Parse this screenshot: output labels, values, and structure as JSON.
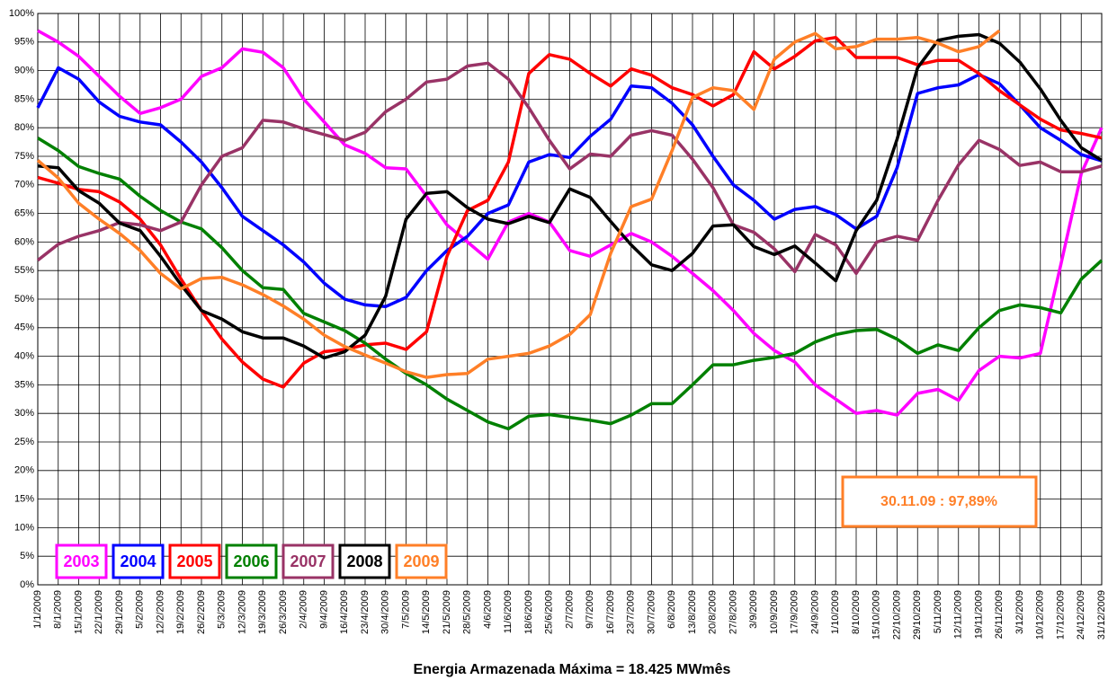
{
  "chart_data": {
    "type": "line",
    "x_label": "Energia Armazenada Máxima = 18.425 MWmês",
    "annotation": "30.11.09 : 97,89%",
    "annotation_color": "#ff7f27",
    "grid": true,
    "legend": "lower left",
    "ylim": [
      0,
      100
    ],
    "yticks": [
      {
        "value": 0,
        "label": "0%"
      },
      {
        "value": 5,
        "label": "5%"
      },
      {
        "value": 10,
        "label": "10%"
      },
      {
        "value": 15,
        "label": "15%"
      },
      {
        "value": 20,
        "label": "20%"
      },
      {
        "value": 25,
        "label": "25%"
      },
      {
        "value": 30,
        "label": "30%"
      },
      {
        "value": 35,
        "label": "35%"
      },
      {
        "value": 40,
        "label": "40%"
      },
      {
        "value": 45,
        "label": "45%"
      },
      {
        "value": 50,
        "label": "50%"
      },
      {
        "value": 55,
        "label": "55%"
      },
      {
        "value": 60,
        "label": "60%"
      },
      {
        "value": 65,
        "label": "65%"
      },
      {
        "value": 70,
        "label": "70%"
      },
      {
        "value": 75,
        "label": "75%"
      },
      {
        "value": 80,
        "label": "80%"
      },
      {
        "value": 85,
        "label": "85%"
      },
      {
        "value": 90,
        "label": "90%"
      },
      {
        "value": 95,
        "label": "95%"
      },
      {
        "value": 100,
        "label": "100%"
      }
    ],
    "categories": [
      "1/1/2009",
      "8/1/2009",
      "15/1/2009",
      "22/1/2009",
      "29/1/2009",
      "5/2/2009",
      "12/2/2009",
      "19/2/2009",
      "26/2/2009",
      "5/3/2009",
      "12/3/2009",
      "19/3/2009",
      "26/3/2009",
      "2/4/2009",
      "9/4/2009",
      "16/4/2009",
      "23/4/2009",
      "30/4/2009",
      "7/5/2009",
      "14/5/2009",
      "21/5/2009",
      "28/5/2009",
      "4/6/2009",
      "11/6/2009",
      "18/6/2009",
      "25/6/2009",
      "2/7/2009",
      "9/7/2009",
      "16/7/2009",
      "23/7/2009",
      "30/7/2009",
      "6/8/2009",
      "13/8/2009",
      "20/8/2009",
      "27/8/2009",
      "3/9/2009",
      "10/9/2009",
      "17/9/2009",
      "24/9/2009",
      "1/10/2009",
      "8/10/2009",
      "15/10/2009",
      "22/10/2009",
      "29/10/2009",
      "5/11/2009",
      "12/11/2009",
      "19/11/2009",
      "26/11/2009",
      "3/12/2009",
      "10/12/2009",
      "17/12/2009",
      "24/12/2009",
      "31/12/2009"
    ],
    "series": [
      {
        "name": "2003",
        "color": "#ff00ff",
        "values": [
          97,
          95,
          92.5,
          89,
          85.5,
          82.5,
          83.5,
          85,
          89,
          90.5,
          93.8,
          93.2,
          90.5,
          85,
          81,
          77,
          75.5,
          73,
          72.8,
          68,
          63,
          60,
          57,
          63.5,
          65,
          63.5,
          58.5,
          57.5,
          59.5,
          61.5,
          60,
          57.5,
          54.5,
          51.5,
          48,
          44,
          41,
          39,
          35,
          32.5,
          30,
          30.5,
          29.7,
          33.5,
          34.2,
          32.3,
          37.5,
          40,
          39.7,
          40.5,
          56,
          72,
          80
        ]
      },
      {
        "name": "2004",
        "color": "#0000ff",
        "values": [
          83.5,
          90.5,
          88.5,
          84.5,
          82,
          81,
          80.5,
          77.5,
          74,
          69.5,
          64.5,
          62,
          59.5,
          56.5,
          52.8,
          50,
          49,
          48.7,
          50.3,
          55,
          58.5,
          61,
          65,
          66.5,
          74,
          75.3,
          74.8,
          78.5,
          81.5,
          87.3,
          87,
          84.3,
          80.5,
          75,
          70,
          67.3,
          64,
          65.7,
          66.2,
          64.8,
          62.3,
          64.5,
          73,
          86,
          87,
          87.5,
          89.3,
          87.7,
          84,
          80,
          77.8,
          75.3,
          74.2
        ]
      },
      {
        "name": "2005",
        "color": "#ff0000",
        "values": [
          71.3,
          70.3,
          69.2,
          68.8,
          67,
          64,
          59.5,
          53.5,
          48,
          43,
          39,
          36,
          34.6,
          38.8,
          40.8,
          41.2,
          42,
          42.3,
          41.2,
          44.3,
          57.5,
          65.5,
          67.3,
          74,
          89.5,
          92.8,
          92,
          89.5,
          87.3,
          90.3,
          89.2,
          87,
          85.8,
          83.8,
          85.8,
          93.3,
          90.3,
          92.5,
          95.2,
          95.8,
          92.3,
          92.3,
          92.3,
          91,
          91.8,
          91.8,
          89.5,
          86.5,
          84,
          81.5,
          79.6,
          79,
          78.2
        ]
      },
      {
        "name": "2006",
        "color": "#008000",
        "values": [
          78.2,
          76,
          73.2,
          72,
          71,
          68,
          65.5,
          63.5,
          62.3,
          59,
          55,
          52,
          51.7,
          47.5,
          46,
          44.5,
          42.3,
          39.5,
          37,
          35,
          32.5,
          30.5,
          28.5,
          27.3,
          29.5,
          29.8,
          29.3,
          28.8,
          28.2,
          29.7,
          31.7,
          31.7,
          35,
          38.5,
          38.5,
          39.3,
          39.8,
          40.5,
          42.5,
          43.8,
          44.5,
          44.7,
          43,
          40.5,
          42,
          41,
          45,
          48,
          49,
          48.5,
          47.6,
          53.5,
          56.8
        ]
      },
      {
        "name": "2007",
        "color": "#993366",
        "values": [
          56.8,
          59.6,
          61,
          62,
          63.4,
          63,
          62,
          63.5,
          70,
          75,
          76.5,
          81.3,
          81,
          79.8,
          78.8,
          77.8,
          79.2,
          82.8,
          85,
          88,
          88.5,
          90.8,
          91.3,
          88.5,
          83.5,
          77.8,
          72.8,
          75.4,
          75,
          78.7,
          79.5,
          78.7,
          74.5,
          69.5,
          63,
          61.7,
          58.8,
          54.8,
          61.3,
          59.5,
          54.5,
          60,
          61,
          60.3,
          67.3,
          73.5,
          77.8,
          76.2,
          73.4,
          74,
          72.3,
          72.3,
          73.3
        ]
      },
      {
        "name": "2008",
        "color": "#000000",
        "values": [
          73.3,
          73,
          69,
          66.8,
          63.3,
          62,
          57.5,
          52.5,
          48,
          46.5,
          44.3,
          43.2,
          43.2,
          41.8,
          39.7,
          40.8,
          43.7,
          50.5,
          64,
          68.5,
          68.8,
          66,
          64,
          63.2,
          64.5,
          63.4,
          69.3,
          67.8,
          63.6,
          59.5,
          56,
          55,
          58,
          62.8,
          63,
          59.2,
          57.8,
          59.3,
          56.3,
          53.2,
          62,
          67.3,
          78,
          90.5,
          95.3,
          96,
          96.3,
          94.8,
          91.5,
          86.8,
          81.3,
          76.5,
          74.3
        ]
      },
      {
        "name": "2009",
        "color": "#ff7f27",
        "values": [
          74.3,
          71.2,
          66.8,
          64,
          61.5,
          58.5,
          54.5,
          51.8,
          53.6,
          53.8,
          52.5,
          50.8,
          48.8,
          46.5,
          43.7,
          41.7,
          40.2,
          38.8,
          37.3,
          36.3,
          36.8,
          37,
          39.5,
          40,
          40.5,
          41.8,
          43.8,
          47.3,
          58,
          66.2,
          67.5,
          76,
          85.3,
          87,
          86.5,
          83.2,
          92,
          95,
          96.5,
          93.8,
          94.2,
          95.5,
          95.5,
          95.8,
          94.8,
          93.3,
          94.2,
          97,
          null,
          null,
          null,
          null,
          null
        ]
      }
    ]
  }
}
